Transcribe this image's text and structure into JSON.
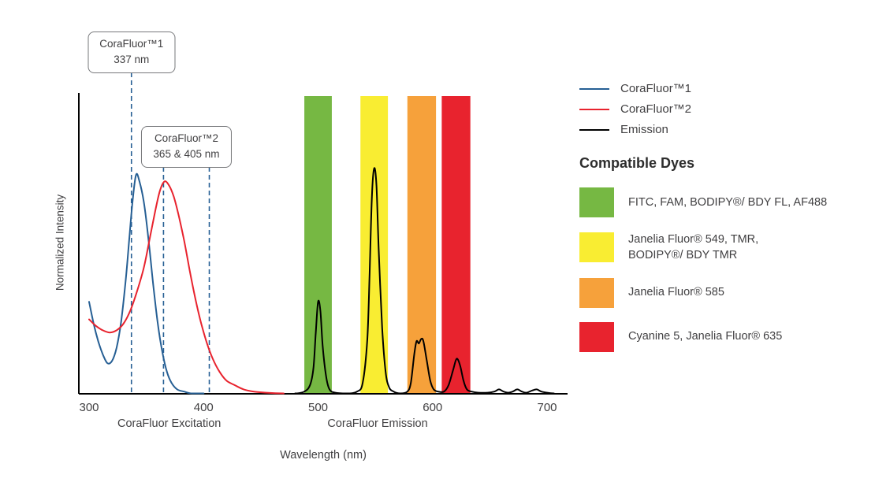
{
  "chart_data": {
    "type": "line",
    "title": "",
    "xlabel": "Wavelength (nm)",
    "ylabel": "Normalized Intensity",
    "x_axis": {
      "min": 300,
      "max": 715,
      "ticks": [
        300,
        400,
        500,
        600,
        700
      ]
    },
    "y_axis": {
      "min": 0,
      "max": 1.12,
      "grid": false
    },
    "axis_section_labels": [
      {
        "text": "CoraFluor Excitation",
        "center_nm": 370
      },
      {
        "text": "CoraFluor Emission",
        "center_nm": 552
      }
    ],
    "callouts": [
      {
        "line1": "CoraFluor™1",
        "line2": "337 nm"
      },
      {
        "line1": "CoraFluor™2",
        "line2": "365 & 405 nm"
      }
    ],
    "markers": [
      {
        "x": 337,
        "color": "#265f94"
      },
      {
        "x": 365,
        "color": "#265f94"
      },
      {
        "x": 405,
        "color": "#265f94"
      }
    ],
    "bands": [
      {
        "name": "green",
        "range": [
          488,
          512
        ],
        "color": "#76b843"
      },
      {
        "name": "yellow",
        "range": [
          537,
          561
        ],
        "color": "#f9ed32"
      },
      {
        "name": "orange",
        "range": [
          578,
          603
        ],
        "color": "#f6a13b"
      },
      {
        "name": "red",
        "range": [
          608,
          633
        ],
        "color": "#e8232e"
      }
    ],
    "series": [
      {
        "name": "CoraFluor™1",
        "color": "#265f94",
        "points": [
          [
            300,
            0.42
          ],
          [
            304,
            0.32
          ],
          [
            308,
            0.24
          ],
          [
            312,
            0.18
          ],
          [
            316,
            0.14
          ],
          [
            320,
            0.15
          ],
          [
            324,
            0.21
          ],
          [
            328,
            0.33
          ],
          [
            332,
            0.52
          ],
          [
            335,
            0.7
          ],
          [
            338,
            0.88
          ],
          [
            341,
            1.0
          ],
          [
            344,
            0.97
          ],
          [
            348,
            0.87
          ],
          [
            352,
            0.7
          ],
          [
            356,
            0.5
          ],
          [
            360,
            0.32
          ],
          [
            364,
            0.19
          ],
          [
            368,
            0.1
          ],
          [
            372,
            0.05
          ],
          [
            377,
            0.02
          ],
          [
            383,
            0.01
          ],
          [
            390,
            0.0
          ],
          [
            400,
            0.0
          ]
        ]
      },
      {
        "name": "CoraFluor™2",
        "color": "#e8232e",
        "points": [
          [
            300,
            0.34
          ],
          [
            306,
            0.31
          ],
          [
            312,
            0.29
          ],
          [
            318,
            0.28
          ],
          [
            324,
            0.29
          ],
          [
            330,
            0.32
          ],
          [
            336,
            0.38
          ],
          [
            342,
            0.47
          ],
          [
            348,
            0.58
          ],
          [
            353,
            0.71
          ],
          [
            358,
            0.84
          ],
          [
            362,
            0.93
          ],
          [
            366,
            0.97
          ],
          [
            370,
            0.95
          ],
          [
            374,
            0.9
          ],
          [
            378,
            0.82
          ],
          [
            383,
            0.7
          ],
          [
            388,
            0.56
          ],
          [
            393,
            0.43
          ],
          [
            398,
            0.32
          ],
          [
            403,
            0.23
          ],
          [
            408,
            0.16
          ],
          [
            414,
            0.1
          ],
          [
            420,
            0.06
          ],
          [
            427,
            0.04
          ],
          [
            435,
            0.02
          ],
          [
            444,
            0.01
          ],
          [
            455,
            0.005
          ],
          [
            470,
            0.0
          ]
        ]
      },
      {
        "name": "Emission",
        "color": "#000000",
        "points": [
          [
            480,
            0
          ],
          [
            488,
            0.01
          ],
          [
            493,
            0.04
          ],
          [
            496,
            0.12
          ],
          [
            498,
            0.28
          ],
          [
            500,
            0.42
          ],
          [
            502,
            0.38
          ],
          [
            504,
            0.22
          ],
          [
            507,
            0.08
          ],
          [
            510,
            0.02
          ],
          [
            515,
            0.005
          ],
          [
            525,
            0
          ],
          [
            534,
            0.01
          ],
          [
            539,
            0.05
          ],
          [
            543,
            0.25
          ],
          [
            545,
            0.55
          ],
          [
            547,
            0.9
          ],
          [
            549,
            1.03
          ],
          [
            551,
            0.95
          ],
          [
            553,
            0.65
          ],
          [
            556,
            0.3
          ],
          [
            559,
            0.1
          ],
          [
            562,
            0.03
          ],
          [
            566,
            0.01
          ],
          [
            572,
            0
          ],
          [
            578,
            0.01
          ],
          [
            581,
            0.05
          ],
          [
            584,
            0.18
          ],
          [
            586,
            0.24
          ],
          [
            588,
            0.23
          ],
          [
            590,
            0.25
          ],
          [
            592,
            0.24
          ],
          [
            595,
            0.15
          ],
          [
            598,
            0.06
          ],
          [
            601,
            0.02
          ],
          [
            605,
            0.01
          ],
          [
            610,
            0.01
          ],
          [
            614,
            0.04
          ],
          [
            618,
            0.11
          ],
          [
            621,
            0.16
          ],
          [
            624,
            0.13
          ],
          [
            627,
            0.06
          ],
          [
            630,
            0.02
          ],
          [
            634,
            0.01
          ],
          [
            640,
            0.005
          ],
          [
            648,
            0.005
          ],
          [
            654,
            0.01
          ],
          [
            658,
            0.02
          ],
          [
            662,
            0.01
          ],
          [
            666,
            0.005
          ],
          [
            670,
            0.01
          ],
          [
            674,
            0.02
          ],
          [
            678,
            0.01
          ],
          [
            682,
            0.005
          ],
          [
            687,
            0.015
          ],
          [
            691,
            0.02
          ],
          [
            695,
            0.01
          ],
          [
            700,
            0.005
          ],
          [
            706,
            0
          ]
        ]
      }
    ]
  },
  "legend": {
    "items": [
      {
        "label": "CoraFluor™1",
        "color": "#265f94"
      },
      {
        "label": "CoraFluor™2",
        "color": "#e8232e"
      },
      {
        "label": "Emission",
        "color": "#000000"
      }
    ]
  },
  "compatible_dyes": {
    "title": "Compatible Dyes",
    "items": [
      {
        "color": "#76b843",
        "label": "FITC, FAM, BODIPY®/ BDY FL, AF488"
      },
      {
        "color": "#f9ed32",
        "label": "Janelia Fluor® 549, TMR,\nBODIPY®/ BDY TMR"
      },
      {
        "color": "#f6a13b",
        "label": "Janelia Fluor® 585"
      },
      {
        "color": "#e8232e",
        "label": "Cyanine 5, Janelia Fluor® 635"
      }
    ]
  }
}
